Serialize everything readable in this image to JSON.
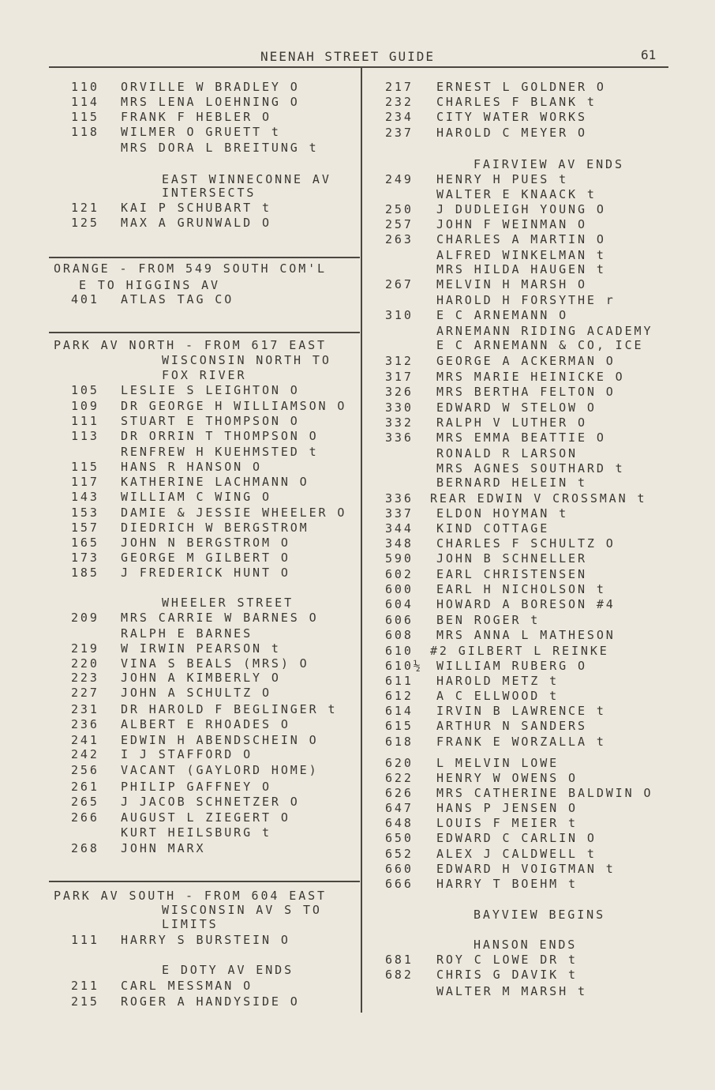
{
  "header": {
    "title": "NEENAH STREET GUIDE",
    "page_number": "61"
  },
  "left_column": [
    {
      "n": "110",
      "t": "ORVILLE W BRADLEY O"
    },
    {
      "n": "114",
      "t": "MRS LENA LOEHNING O"
    },
    {
      "n": "115",
      "t": "FRANK F HEBLER O"
    },
    {
      "n": "118",
      "t": "WILMER O GRUETT t"
    },
    {
      "n": "",
      "t": "MRS DORA L BREITUNG t"
    },
    {
      "h": "EAST WINNECONNE AV"
    },
    {
      "h": "INTERSECTS"
    },
    {
      "n": "121",
      "t": "KAI P SCHUBART t"
    },
    {
      "n": "125",
      "t": "MAX A GRUNWALD O"
    },
    {
      "s": "ORANGE - FROM 549  SOUTH  COM'L"
    },
    {
      "h2": "E TO HIGGINS AV"
    },
    {
      "n": "401",
      "t": "ATLAS TAG CO"
    },
    {
      "s": "PARK AV NORTH - FROM 617 EAST"
    },
    {
      "h": "WISCONSIN NORTH TO"
    },
    {
      "h": "FOX RIVER"
    },
    {
      "n": "105",
      "t": "LESLIE S LEIGHTON O"
    },
    {
      "n": "109",
      "t": "DR GEORGE H WILLIAMSON O"
    },
    {
      "n": "111",
      "t": "STUART E THOMPSON O"
    },
    {
      "n": "113",
      "t": "DR ORRIN T THOMPSON O"
    },
    {
      "n": "",
      "t": "RENFREW H KUEHMSTED t"
    },
    {
      "n": "115",
      "t": "HANS R HANSON O"
    },
    {
      "n": "117",
      "t": "KATHERINE LACHMANN O"
    },
    {
      "n": "143",
      "t": "WILLIAM C WING  O"
    },
    {
      "n": "153",
      "t": "DAMIE & JESSIE WHEELER O"
    },
    {
      "n": "157",
      "t": "DIEDRICH W BERGSTROM"
    },
    {
      "n": "165",
      "t": "JOHN N BERGSTROM O"
    },
    {
      "n": "173",
      "t": "GEORGE M GILBERT O"
    },
    {
      "n": "185",
      "t": "J FREDERICK HUNT O"
    },
    {
      "h": "WHEELER STREET"
    },
    {
      "n": "209",
      "t": "MRS CARRIE W BARNES O"
    },
    {
      "n": "",
      "t": "RALPH E BARNES"
    },
    {
      "n": "219",
      "t": "W IRWIN PEARSON t"
    },
    {
      "n": "220",
      "t": "VINA S BEALS (MRS) O"
    },
    {
      "n": "223",
      "t": "JOHN A KIMBERLY O"
    },
    {
      "n": "227",
      "t": "JOHN A SCHULTZ O"
    },
    {
      "n": "231",
      "t": "DR HAROLD F BEGLINGER t"
    },
    {
      "n": "236",
      "t": "ALBERT E RHOADES O"
    },
    {
      "n": "241",
      "t": "EDWIN H ABENDSCHEIN O"
    },
    {
      "n": "242",
      "t": "I J STAFFORD  O"
    },
    {
      "n": "256",
      "t": "VACANT (GAYLORD HOME)"
    },
    {
      "n": "261",
      "t": "PHILIP GAFFNEY O"
    },
    {
      "n": "265",
      "t": "J JACOB SCHNETZER O"
    },
    {
      "n": "266",
      "t": "AUGUST L ZIEGERT O"
    },
    {
      "n": "",
      "t": "KURT HEILSBURG t"
    },
    {
      "n": "268",
      "t": "JOHN MARX"
    },
    {
      "s": "PARK AV SOUTH - FROM 604 EAST"
    },
    {
      "h": "WISCONSIN AV S TO"
    },
    {
      "h": "LIMITS"
    },
    {
      "n": "111",
      "t": "HARRY S BURSTEIN O"
    },
    {
      "h": "E DOTY AV ENDS"
    },
    {
      "n": "211",
      "t": "CARL MESSMAN O"
    },
    {
      "n": "215",
      "t": "ROGER A HANDYSIDE O"
    }
  ],
  "right_column": [
    {
      "n": "217",
      "t": "ERNEST L GOLDNER O"
    },
    {
      "n": "232",
      "t": "CHARLES F BLANK t"
    },
    {
      "n": "234",
      "t": "CITY WATER WORKS"
    },
    {
      "n": "237",
      "t": "HAROLD C MEYER O"
    },
    {
      "h": "FAIRVIEW AV ENDS"
    },
    {
      "n": "249",
      "t": "HENRY H PUES t"
    },
    {
      "n": "",
      "t": "WALTER E KNAACK t"
    },
    {
      "n": "250",
      "t": "J DUDLEIGH YOUNG O"
    },
    {
      "n": "257",
      "t": "JOHN F WEINMAN O"
    },
    {
      "n": "263",
      "t": "CHARLES A MARTIN O"
    },
    {
      "n": "",
      "t": "ALFRED WINKELMAN t"
    },
    {
      "n": "",
      "t": "MRS HILDA HAUGEN t"
    },
    {
      "n": "267",
      "t": "MELVIN H MARSH O"
    },
    {
      "n": "",
      "t": "HAROLD H FORSYTHE r"
    },
    {
      "n": "310",
      "t": "E C ARNEMANN O"
    },
    {
      "n": "",
      "t": "ARNEMANN RIDING ACADEMY"
    },
    {
      "n": "",
      "t": "E C ARNEMANN & CO, ICE"
    },
    {
      "n": "312",
      "t": "GEORGE A ACKERMAN O"
    },
    {
      "n": "317",
      "t": "MRS MARIE HEINICKE O"
    },
    {
      "n": "326",
      "t": "MRS BERTHA FELTON O"
    },
    {
      "n": "330",
      "t": "EDWARD W STELOW O"
    },
    {
      "n": "332",
      "t": "RALPH V LUTHER O"
    },
    {
      "n": "336",
      "t": "MRS EMMA BEATTIE O"
    },
    {
      "n": "",
      "t": "RONALD R LARSON"
    },
    {
      "n": "",
      "t": "MRS AGNES SOUTHARD t"
    },
    {
      "n": "",
      "t": "BERNARD HELEIN t"
    },
    {
      "n": "336",
      "t": "REAR  EDWIN V CROSSMAN t",
      "wide": true
    },
    {
      "n": "337",
      "t": "ELDON HOYMAN t"
    },
    {
      "n": "344",
      "t": " KIND COTTAGE"
    },
    {
      "n": "348",
      "t": "CHARLES F SCHULTZ O"
    },
    {
      "n": "590",
      "t": "JOHN B SCHNELLER"
    },
    {
      "n": "602",
      "t": "EARL CHRISTENSEN"
    },
    {
      "n": "600",
      "t": "EARL H NICHOLSON t"
    },
    {
      "n": "604",
      "t": "HOWARD A BORESON #4"
    },
    {
      "n": "606",
      "t": "BEN ROGER t"
    },
    {
      "n": "608",
      "t": "MRS ANNA L MATHESON"
    },
    {
      "n": "610",
      "t": "#2 GILBERT L REINKE",
      "wide": true
    },
    {
      "n": "610½",
      "t": "WILLIAM RUBERG  O"
    },
    {
      "n": "611",
      "t": "HAROLD METZ t"
    },
    {
      "n": "612",
      "t": "A C ELLWOOD t"
    },
    {
      "n": "614",
      "t": "IRVIN B LAWRENCE t"
    },
    {
      "n": "615",
      "t": "ARTHUR N SANDERS"
    },
    {
      "n": "618",
      "t": "FRANK E WORZALLA t"
    },
    {
      "n": "620",
      "t": "L MELVIN LOWE"
    },
    {
      "n": "622",
      "t": "HENRY W OWENS O"
    },
    {
      "n": "626",
      "t": "MRS CATHERINE BALDWIN O"
    },
    {
      "n": "647",
      "t": "HANS P JENSEN O"
    },
    {
      "n": "648",
      "t": "LOUIS F MEIER t"
    },
    {
      "n": "650",
      "t": "EDWARD C CARLIN O"
    },
    {
      "n": "652",
      "t": "ALEX J CALDWELL t"
    },
    {
      "n": "660",
      "t": "EDWARD H VOIGTMAN t"
    },
    {
      "n": "666",
      "t": "HARRY T BOEHM t"
    },
    {
      "h": "BAYVIEW BEGINS"
    },
    {
      "h": "HANSON ENDS"
    },
    {
      "n": "681",
      "t": "ROY C LOWE  DR  t"
    },
    {
      "n": "682",
      "t": "CHRIS G DAVIK t"
    },
    {
      "n": "",
      "t": "WALTER M MARSH t"
    }
  ]
}
